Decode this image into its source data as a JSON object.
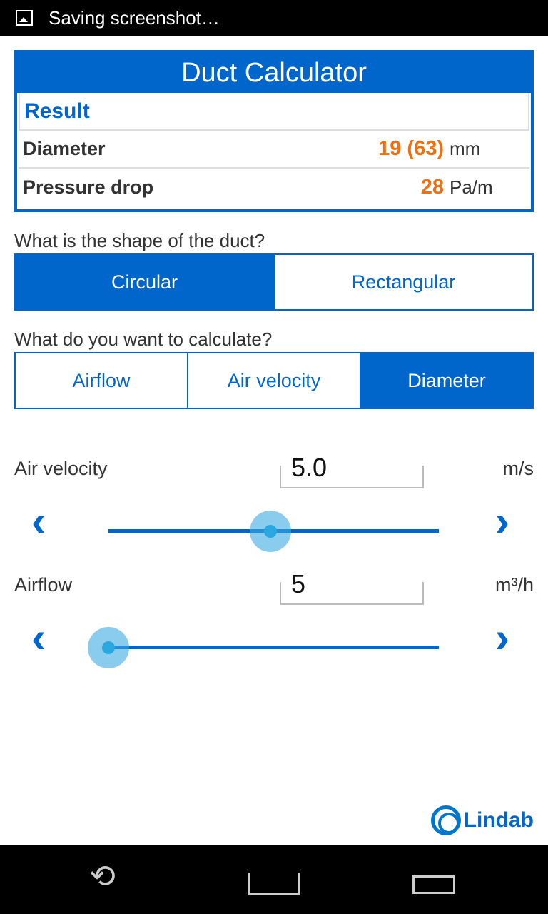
{
  "status_bar": {
    "notification": "Saving screenshot…",
    "icon": "image-icon"
  },
  "result_card": {
    "title": "Duct Calculator",
    "heading": "Result",
    "rows": [
      {
        "label": "Diameter",
        "value": "19 (63)",
        "unit": "mm"
      },
      {
        "label": "Pressure drop",
        "value": "28",
        "unit": "Pa/m"
      }
    ]
  },
  "shape": {
    "question": "What is the shape of the duct?",
    "options": [
      "Circular",
      "Rectangular"
    ],
    "selected": "Circular"
  },
  "calc": {
    "question": "What do you want to calculate?",
    "options": [
      "Airflow",
      "Air velocity",
      "Diameter"
    ],
    "selected": "Diameter"
  },
  "velocity": {
    "label": "Air velocity",
    "value": "5.0",
    "unit": "m/s",
    "slider_fraction": 0.49
  },
  "airflow": {
    "label": "Airflow",
    "value": "5",
    "unit": "m³/h",
    "slider_fraction": 0.0
  },
  "brand": {
    "name": "Lindab"
  },
  "colors": {
    "accent": "#0066cc",
    "result": "#f07010",
    "thumb": "#2ba8df"
  }
}
